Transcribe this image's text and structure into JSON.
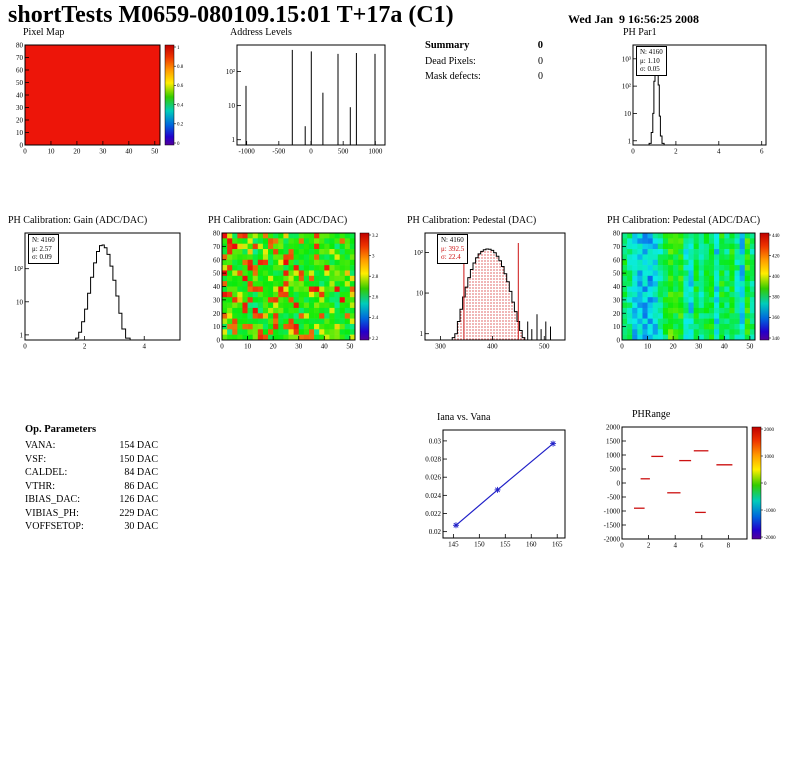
{
  "header": {
    "title": "shortTests M0659-080109.15:01 T+17a (C1)",
    "date": "Wed Jan  9 16:56:25 2008"
  },
  "summary": {
    "title": "Summary",
    "value": "0",
    "rows": [
      {
        "label": "Dead Pixels:",
        "value": "0"
      },
      {
        "label": "Mask defects:",
        "value": "0"
      }
    ]
  },
  "op_parameters": {
    "title": "Op. Parameters",
    "rows": [
      {
        "label": "VANA:",
        "value": "154 DAC"
      },
      {
        "label": "VSF:",
        "value": "150 DAC"
      },
      {
        "label": "CALDEL:",
        "value": "84 DAC"
      },
      {
        "label": "VTHR:",
        "value": "86 DAC"
      },
      {
        "label": "IBIAS_DAC:",
        "value": "126 DAC"
      },
      {
        "label": "VIBIAS_PH:",
        "value": "229 DAC"
      },
      {
        "label": "VOFFSETOP:",
        "value": "30 DAC"
      }
    ]
  },
  "chart_data": [
    {
      "id": "pixel-map",
      "type": "heatmap",
      "variant": "uniform",
      "title": "Pixel Map",
      "xlim": [
        0,
        52
      ],
      "ylim": [
        0,
        80
      ],
      "xticks": [
        0,
        10,
        20,
        30,
        40,
        50
      ],
      "yticks": [
        0,
        10,
        20,
        30,
        40,
        50,
        60,
        70,
        80
      ],
      "fill_color": "#ed1509",
      "colorbar": true,
      "colorbar_ticks": [
        "1",
        "0.8",
        "0.6",
        "0.4",
        "0.2",
        "0"
      ]
    },
    {
      "id": "address-levels",
      "type": "spikes",
      "title": "Address Levels",
      "xlim": [
        -1150,
        1150
      ],
      "ylim": [
        0.7,
        600
      ],
      "ylog": true,
      "xticks": [
        -1000,
        -500,
        0,
        500,
        1000
      ],
      "yticks": [
        {
          "v": 1,
          "label": "1"
        },
        {
          "v": 10,
          "label": "10"
        },
        {
          "v": 100,
          "label": "10²"
        }
      ],
      "spikes": [
        [
          -1010,
          38
        ],
        [
          -290,
          430
        ],
        [
          -90,
          2.5
        ],
        [
          5,
          390
        ],
        [
          185,
          24
        ],
        [
          420,
          330
        ],
        [
          610,
          9
        ],
        [
          705,
          350
        ],
        [
          995,
          330
        ]
      ]
    },
    {
      "id": "ph-par1",
      "type": "histogram",
      "title": "PH Par1",
      "xlim": [
        0,
        6.2
      ],
      "ylim": [
        0.7,
        3200
      ],
      "ylog": true,
      "xticks": [
        0,
        2,
        4,
        6
      ],
      "yticks": [
        {
          "v": 1,
          "label": "1"
        },
        {
          "v": 10,
          "label": "10"
        },
        {
          "v": 100,
          "label": "10²"
        },
        {
          "v": 1000,
          "label": "10³"
        }
      ],
      "stats": {
        "lines": [
          {
            "text": "N: 4160",
            "color": "#000000"
          },
          {
            "text": "μ: 1.10",
            "color": "#000000"
          },
          {
            "text": "σ: 0.05",
            "color": "#000000"
          }
        ]
      },
      "points": [
        [
          0.8,
          0.8
        ],
        [
          0.9,
          2
        ],
        [
          0.95,
          10
        ],
        [
          1.0,
          150
        ],
        [
          1.05,
          1400
        ],
        [
          1.1,
          2300
        ],
        [
          1.15,
          1100
        ],
        [
          1.2,
          110
        ],
        [
          1.25,
          8
        ],
        [
          1.3,
          1.5
        ],
        [
          1.4,
          0.8
        ]
      ]
    },
    {
      "id": "gain-hist",
      "type": "histogram",
      "title": "PH Calibration: Gain (ADC/DAC)",
      "xlim": [
        0,
        5.2
      ],
      "ylim": [
        0.7,
        1200
      ],
      "ylog": true,
      "xticks": [
        0,
        2,
        4
      ],
      "yticks": [
        {
          "v": 1,
          "label": "1"
        },
        {
          "v": 10,
          "label": "10"
        },
        {
          "v": 100,
          "label": "10²"
        }
      ],
      "stats": {
        "lines": [
          {
            "text": "N: 4160",
            "color": "#000000"
          },
          {
            "text": "μ: 2.57",
            "color": "#000000"
          },
          {
            "text": "σ: 0.09",
            "color": "#000000"
          }
        ]
      },
      "points": [
        [
          1.75,
          0.8
        ],
        [
          1.85,
          1.2
        ],
        [
          1.95,
          2.5
        ],
        [
          2.05,
          6
        ],
        [
          2.15,
          18
        ],
        [
          2.25,
          55
        ],
        [
          2.35,
          150
        ],
        [
          2.45,
          330
        ],
        [
          2.55,
          500
        ],
        [
          2.62,
          520
        ],
        [
          2.7,
          430
        ],
        [
          2.8,
          270
        ],
        [
          2.9,
          120
        ],
        [
          3.0,
          45
        ],
        [
          3.1,
          15
        ],
        [
          3.2,
          4.5
        ],
        [
          3.3,
          1.5
        ],
        [
          3.45,
          0.8
        ]
      ]
    },
    {
      "id": "gain-2d",
      "type": "heatmap",
      "variant": "gain-noise",
      "seed": 7,
      "title": "PH Calibration: Gain (ADC/DAC)",
      "xlim": [
        0,
        52
      ],
      "ylim": [
        0,
        80
      ],
      "xticks": [
        0,
        10,
        20,
        30,
        40,
        50
      ],
      "yticks": [
        0,
        10,
        20,
        30,
        40,
        50,
        60,
        70,
        80
      ],
      "colorbar": true,
      "colorbar_ticks": [
        "3.2",
        "3",
        "2.8",
        "2.6",
        "2.4",
        "2.2"
      ]
    },
    {
      "id": "pedestal-hist",
      "type": "histogram",
      "title": "PH Calibration: Pedestal (DAC)",
      "xlim": [
        270,
        540
      ],
      "ylim": [
        0.7,
        300
      ],
      "ylog": true,
      "xticks": [
        300,
        400,
        500
      ],
      "yticks": [
        {
          "v": 1,
          "label": "1"
        },
        {
          "v": 10,
          "label": "10"
        },
        {
          "v": 100,
          "label": "10²"
        }
      ],
      "stats": {
        "lines": [
          {
            "text": "N: 4160",
            "color": "#000000"
          },
          {
            "text": "μ: 392.5",
            "color": "#cc1111"
          },
          {
            "text": "σ: 22.4",
            "color": "#cc1111"
          }
        ]
      },
      "fill": "dotted-red",
      "cut_lines": {
        "color": "#cc1111",
        "x": [
          345,
          450
        ],
        "top": 170
      },
      "points": [
        [
          325,
          0.8
        ],
        [
          330,
          1
        ],
        [
          335,
          2
        ],
        [
          340,
          4
        ],
        [
          345,
          8
        ],
        [
          350,
          14
        ],
        [
          355,
          24
        ],
        [
          360,
          38
        ],
        [
          365,
          55
        ],
        [
          370,
          74
        ],
        [
          375,
          92
        ],
        [
          380,
          106
        ],
        [
          385,
          116
        ],
        [
          390,
          121
        ],
        [
          395,
          120
        ],
        [
          400,
          112
        ],
        [
          405,
          98
        ],
        [
          410,
          80
        ],
        [
          415,
          62
        ],
        [
          420,
          45
        ],
        [
          425,
          30
        ],
        [
          430,
          19
        ],
        [
          435,
          11
        ],
        [
          440,
          6
        ],
        [
          445,
          3.5
        ],
        [
          450,
          2
        ],
        [
          455,
          1.2
        ],
        [
          460,
          0.8
        ]
      ],
      "outliers": [
        [
          468,
          2
        ],
        [
          476,
          1.3
        ],
        [
          486,
          3
        ],
        [
          494,
          1.3
        ],
        [
          503,
          2
        ],
        [
          512,
          1.5
        ]
      ]
    },
    {
      "id": "pedestal-2d",
      "type": "heatmap",
      "variant": "stripes",
      "seed": 13,
      "title": "PH Calibration: Pedestal (ADC/DAC)",
      "xlim": [
        0,
        52
      ],
      "ylim": [
        0,
        80
      ],
      "xticks": [
        0,
        10,
        20,
        30,
        40,
        50
      ],
      "yticks": [
        0,
        10,
        20,
        30,
        40,
        50,
        60,
        70,
        80
      ],
      "colorbar": true,
      "colorbar_ticks": [
        "440",
        "420",
        "400",
        "380",
        "360",
        "340"
      ]
    },
    {
      "id": "iana-vana",
      "type": "line",
      "title": "Iana vs. Vana",
      "xlim": [
        143,
        166.5
      ],
      "ylim": [
        0.0193,
        0.0312
      ],
      "xticks": [
        145,
        150,
        155,
        160,
        165
      ],
      "yticks": [
        {
          "v": 0.02,
          "label": "0.02"
        },
        {
          "v": 0.022,
          "label": "0.022"
        },
        {
          "v": 0.024,
          "label": "0.024"
        },
        {
          "v": 0.026,
          "label": "0.026"
        },
        {
          "v": 0.028,
          "label": "0.028"
        },
        {
          "v": 0.03,
          "label": "0.03"
        }
      ],
      "color": "#2020c8",
      "points": [
        [
          145.5,
          0.0207
        ],
        [
          153.5,
          0.0246
        ],
        [
          164.2,
          0.0297
        ]
      ]
    },
    {
      "id": "ph-range",
      "type": "segments",
      "title": "PHRange",
      "xlim": [
        0,
        9.4
      ],
      "ylim": [
        -2000,
        2000
      ],
      "xticks": [
        0,
        2,
        4,
        6,
        8
      ],
      "yticks": [
        {
          "v": 2000,
          "label": "2000"
        },
        {
          "v": 1500,
          "label": "1500"
        },
        {
          "v": 1000,
          "label": "1000"
        },
        {
          "v": 500,
          "label": "500"
        },
        {
          "v": 0,
          "label": "0"
        },
        {
          "v": -500,
          "label": "-500"
        },
        {
          "v": -1000,
          "label": "-1000"
        },
        {
          "v": -1500,
          "label": "-1500"
        },
        {
          "v": -2000,
          "label": "-2000"
        }
      ],
      "color": "#cc1111",
      "segments": [
        [
          2.2,
          3.1,
          950
        ],
        [
          4.3,
          5.2,
          800
        ],
        [
          5.4,
          6.5,
          1150
        ],
        [
          7.1,
          8.3,
          650
        ],
        [
          1.4,
          2.1,
          150
        ],
        [
          3.4,
          4.4,
          -350
        ],
        [
          0.9,
          1.7,
          -900
        ],
        [
          5.5,
          6.3,
          -1050
        ]
      ],
      "colorbar": true,
      "colorbar_ticks": [
        "2000",
        "1000",
        "0",
        "-1000",
        "-2000"
      ]
    }
  ]
}
